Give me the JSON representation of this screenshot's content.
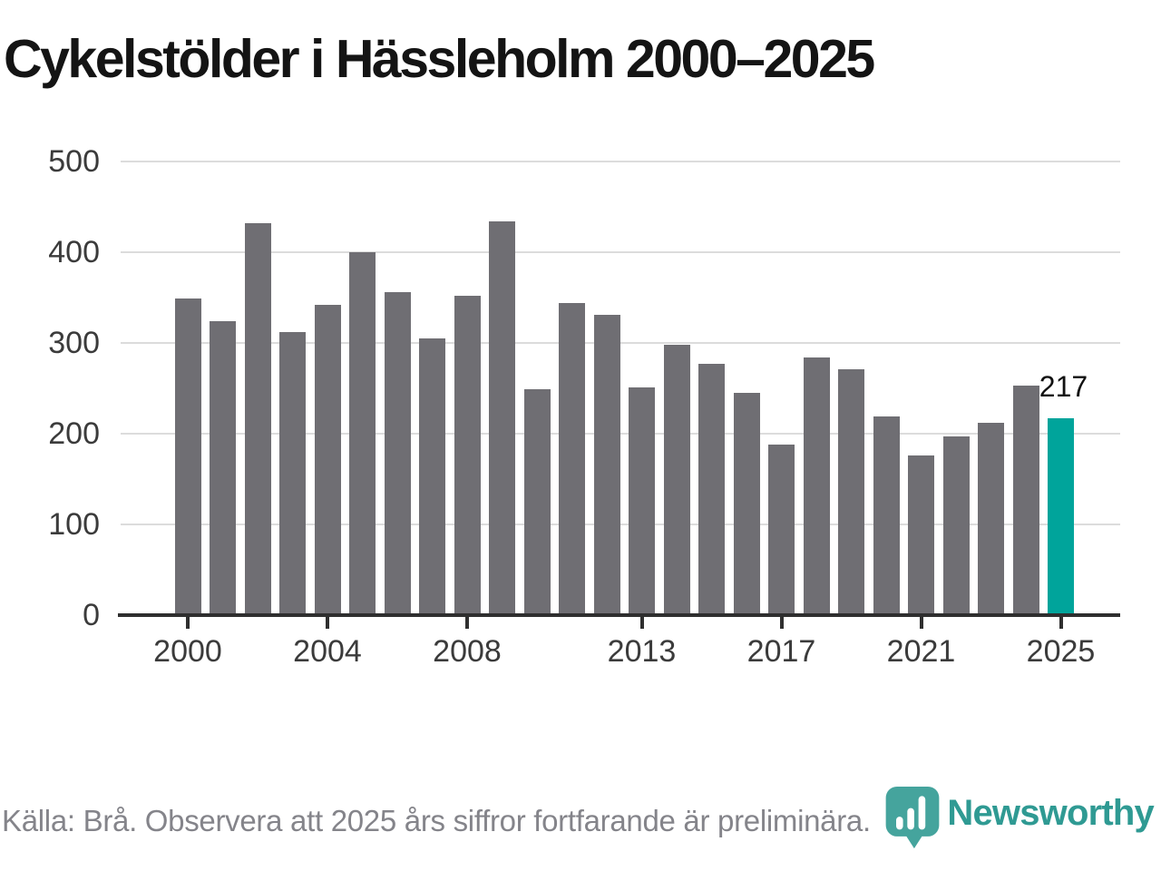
{
  "title": "Cykelstölder i Hässleholm 2000–2025",
  "footer": {
    "source_note": "Källa: Brå. Observera att 2025 års siffror fortfarande är preliminära.",
    "brand": "Newsworthy"
  },
  "colors": {
    "bar": "#6f6e73",
    "accent": "#00a49b",
    "logo": "#45a49d",
    "grid": "#dcdcdc",
    "axis": "#2f2f2f",
    "tick_label": "#3b3b3b",
    "annotation": "#111111"
  },
  "chart_data": {
    "type": "bar",
    "title": "Cykelstölder i Hässleholm 2000–2025",
    "categories": [
      2000,
      2001,
      2002,
      2003,
      2004,
      2005,
      2006,
      2007,
      2008,
      2009,
      2010,
      2011,
      2012,
      2013,
      2014,
      2015,
      2016,
      2017,
      2018,
      2019,
      2020,
      2021,
      2022,
      2023,
      2024,
      2025
    ],
    "values": [
      349,
      324,
      432,
      312,
      342,
      400,
      356,
      305,
      352,
      434,
      249,
      344,
      331,
      251,
      298,
      277,
      245,
      188,
      284,
      271,
      219,
      176,
      197,
      212,
      253,
      217
    ],
    "highlight_index": 25,
    "annotation": {
      "index": 25,
      "text": "217"
    },
    "yticks": [
      0,
      100,
      200,
      300,
      400,
      500
    ],
    "xticks": [
      2000,
      2004,
      2008,
      2013,
      2017,
      2021,
      2025
    ],
    "ylim": [
      0,
      500
    ],
    "xlabel": "",
    "ylabel": "",
    "grid": true,
    "legend": false
  }
}
